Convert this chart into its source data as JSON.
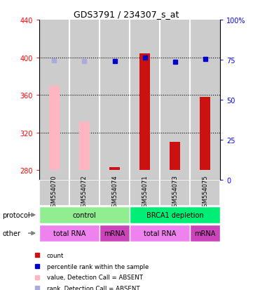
{
  "title": "GDS3791 / 234307_s_at",
  "samples": [
    "GSM554070",
    "GSM554072",
    "GSM554074",
    "GSM554071",
    "GSM554073",
    "GSM554075"
  ],
  "count_values": [
    null,
    null,
    283,
    404,
    310,
    358
  ],
  "count_base": 280,
  "absent_bar_values": [
    370,
    332,
    283,
    null,
    null,
    null
  ],
  "absent_bar_base": 280,
  "rank_values": [
    null,
    null,
    396,
    400,
    395,
    398
  ],
  "absent_rank_values": [
    397,
    396,
    null,
    null,
    null,
    null
  ],
  "ylim_left": [
    270,
    440
  ],
  "ylim_right": [
    0,
    100
  ],
  "yticks_left": [
    280,
    320,
    360,
    400,
    440
  ],
  "yticks_right": [
    0,
    25,
    50,
    75,
    100
  ],
  "dotted_lines": [
    400,
    360,
    320
  ],
  "protocol_groups": [
    {
      "label": "control",
      "start": 0,
      "end": 3,
      "color": "#90ee90"
    },
    {
      "label": "BRCA1 depletion",
      "start": 3,
      "end": 6,
      "color": "#00ee76"
    }
  ],
  "other_groups": [
    {
      "label": "total RNA",
      "start": 0,
      "end": 2,
      "color": "#ee82ee"
    },
    {
      "label": "mRNA",
      "start": 2,
      "end": 3,
      "color": "#cc44bb"
    },
    {
      "label": "total RNA",
      "start": 3,
      "end": 5,
      "color": "#ee82ee"
    },
    {
      "label": "mRNA",
      "start": 5,
      "end": 6,
      "color": "#cc44bb"
    }
  ],
  "bar_color_absent": "#ffb6c1",
  "bar_color_present": "#cc1111",
  "rank_color_present": "#0000cc",
  "rank_color_absent": "#aaaadd",
  "sample_area_color": "#cccccc",
  "chart_bg": "#ffffff",
  "legend": [
    {
      "color": "#cc1111",
      "label": "count"
    },
    {
      "color": "#0000cc",
      "label": "percentile rank within the sample"
    },
    {
      "color": "#ffb6c1",
      "label": "value, Detection Call = ABSENT"
    },
    {
      "color": "#aaaadd",
      "label": "rank, Detection Call = ABSENT"
    }
  ],
  "bar_width": 0.35
}
